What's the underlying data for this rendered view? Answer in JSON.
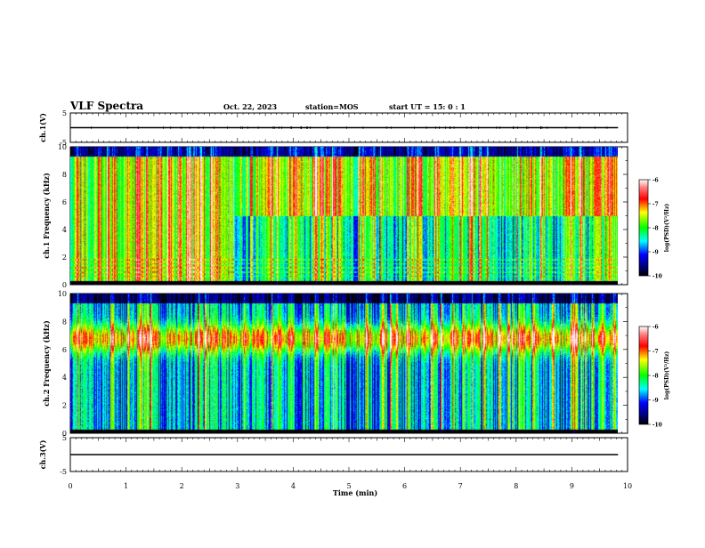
{
  "header": {
    "title": "VLF Spectra",
    "date": "Oct. 22, 2023",
    "station": "station=MOS",
    "start": "start  UT =  15: 0  : 1"
  },
  "chart_data": [
    {
      "type": "line",
      "name": "ch1-voltage",
      "ylabel": "ch.1(V)",
      "ylim": [
        -5,
        5
      ],
      "yticks": [
        "5",
        "-5"
      ],
      "xlim": [
        0,
        10
      ],
      "level": 0,
      "extent": [
        0,
        9.83
      ]
    },
    {
      "type": "heatmap",
      "name": "ch1-spectrogram",
      "ylabel": "ch.1 Frequency (kHz)",
      "ylim": [
        0,
        10
      ],
      "yticks": [
        "0",
        "2",
        "4",
        "6",
        "8",
        "10"
      ],
      "xlim": [
        0,
        10
      ],
      "extent": [
        0,
        9.83
      ],
      "colorbar": {
        "label": "log(PSD)(V²/Hz)",
        "range": [
          -10,
          -6
        ],
        "ticks": [
          "-6",
          "-7",
          "-8",
          "-9",
          "-10"
        ]
      }
    },
    {
      "type": "heatmap",
      "name": "ch2-spectrogram",
      "ylabel": "ch.2 Frequency (kHz)",
      "ylim": [
        0,
        10
      ],
      "yticks": [
        "0",
        "2",
        "4",
        "6",
        "8",
        "10"
      ],
      "xlim": [
        0,
        10
      ],
      "extent": [
        0,
        9.83
      ],
      "colorbar": {
        "label": "log(PSD)(V²/Hz)",
        "range": [
          -10,
          -6
        ],
        "ticks": [
          "-6",
          "-7",
          "-8",
          "-9",
          "-10"
        ]
      }
    },
    {
      "type": "line",
      "name": "ch3-voltage",
      "ylabel": "ch.3(V)",
      "ylim": [
        -5,
        5
      ],
      "yticks": [
        "5",
        "-5"
      ],
      "xlim": [
        0,
        10
      ],
      "level": 0,
      "extent": [
        0,
        9.83
      ]
    }
  ],
  "xaxis": {
    "label": "Time (min)",
    "ticks": [
      "0",
      "1",
      "2",
      "3",
      "4",
      "5",
      "6",
      "7",
      "8",
      "9",
      "10"
    ]
  }
}
